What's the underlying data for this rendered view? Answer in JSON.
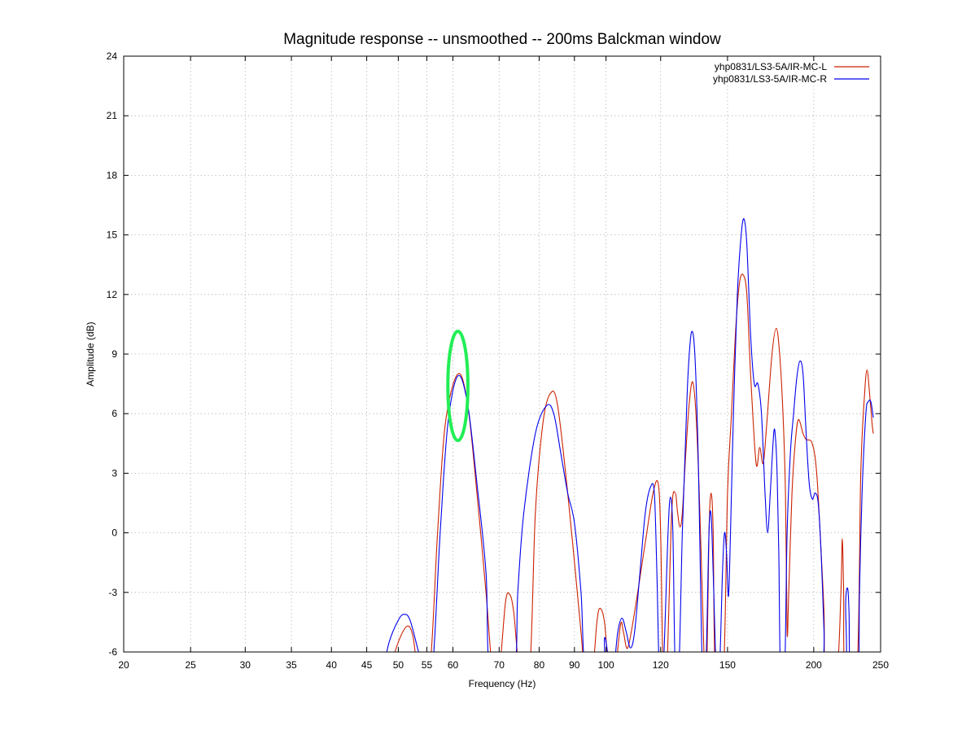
{
  "chart_data": {
    "type": "line",
    "title": "Magnitude response -- unsmoothed -- 200ms Balckman window",
    "xlabel": "Frequency (Hz)",
    "ylabel": "Amplitude (dB)",
    "x_scale": "log",
    "xlim": [
      20,
      250
    ],
    "ylim": [
      -6,
      24
    ],
    "x_ticks": [
      20,
      25,
      30,
      35,
      40,
      45,
      50,
      55,
      60,
      70,
      80,
      90,
      100,
      120,
      150,
      200,
      250
    ],
    "y_ticks": [
      -6,
      -3,
      0,
      3,
      6,
      9,
      12,
      15,
      18,
      21,
      24
    ],
    "grid": true,
    "legend_position": "top-right",
    "series": [
      {
        "name": "yhp0831/LS3-5A/IR-MC-L",
        "color": "#cc2200",
        "points": [
          [
            48.5,
            -7
          ],
          [
            50,
            -5.5
          ],
          [
            51.5,
            -4.7
          ],
          [
            52.5,
            -5.2
          ],
          [
            53.5,
            -7
          ],
          [
            55.5,
            -7
          ],
          [
            57,
            0
          ],
          [
            58.5,
            5.5
          ],
          [
            61,
            8
          ],
          [
            63,
            6.5
          ],
          [
            65,
            2
          ],
          [
            67,
            -3
          ],
          [
            68.5,
            -7
          ],
          [
            70,
            -7
          ],
          [
            71.5,
            -3.5
          ],
          [
            72.5,
            -3.1
          ],
          [
            73.5,
            -4
          ],
          [
            75,
            -7
          ],
          [
            77.5,
            -7
          ],
          [
            79,
            1
          ],
          [
            81,
            5.5
          ],
          [
            83,
            7
          ],
          [
            85,
            6.5
          ],
          [
            88,
            2
          ],
          [
            92,
            -5
          ],
          [
            93,
            -7
          ],
          [
            95.5,
            -7
          ],
          [
            97,
            -4.5
          ],
          [
            98,
            -3.8
          ],
          [
            99.5,
            -4.5
          ],
          [
            101,
            -7
          ],
          [
            103,
            -7
          ],
          [
            105,
            -4.6
          ],
          [
            106,
            -5
          ],
          [
            107.5,
            -5.8
          ],
          [
            110,
            -4
          ],
          [
            114,
            -0.5
          ],
          [
            117,
            2
          ],
          [
            119,
            2.5
          ],
          [
            120,
            0
          ],
          [
            121,
            -7
          ],
          [
            122.5,
            -7
          ],
          [
            124.5,
            1
          ],
          [
            126,
            2
          ],
          [
            127,
            1
          ],
          [
            128,
            0.3
          ],
          [
            129,
            1
          ],
          [
            130.5,
            4
          ],
          [
            132,
            6.5
          ],
          [
            133.5,
            7.6
          ],
          [
            135,
            6
          ],
          [
            136.5,
            2
          ],
          [
            138,
            -3.5
          ],
          [
            139,
            -7
          ],
          [
            140,
            -7
          ],
          [
            141,
            0
          ],
          [
            142,
            2
          ],
          [
            143,
            0
          ],
          [
            144,
            -7
          ],
          [
            148,
            -7
          ],
          [
            150,
            2
          ],
          [
            152,
            6
          ],
          [
            154,
            10
          ],
          [
            156,
            12.5
          ],
          [
            158,
            13
          ],
          [
            160,
            12
          ],
          [
            162,
            8
          ],
          [
            165,
            3.5
          ],
          [
            167,
            4.3
          ],
          [
            169,
            3.5
          ],
          [
            171,
            5.5
          ],
          [
            174,
            9
          ],
          [
            176.5,
            10.3
          ],
          [
            178.5,
            9
          ],
          [
            180.5,
            6
          ],
          [
            182,
            2
          ],
          [
            183,
            -5
          ],
          [
            184,
            -3
          ],
          [
            186,
            2
          ],
          [
            188,
            4.5
          ],
          [
            190,
            5.7
          ],
          [
            193,
            5
          ],
          [
            195,
            4.7
          ],
          [
            199,
            4.5
          ],
          [
            202,
            3
          ],
          [
            205,
            -1
          ],
          [
            207,
            -4
          ],
          [
            208,
            -7
          ],
          [
            216,
            -7
          ],
          [
            219,
            -3
          ],
          [
            220,
            -0.3
          ],
          [
            221,
            -3
          ],
          [
            222,
            -7
          ],
          [
            231,
            -7
          ],
          [
            234,
            3
          ],
          [
            237,
            7
          ],
          [
            239,
            8.2
          ],
          [
            241,
            7
          ],
          [
            243,
            5.5
          ],
          [
            244,
            5
          ]
        ]
      },
      {
        "name": "yhp0831/LS3-5A/IR-MC-R",
        "color": "#0000ee",
        "points": [
          [
            47.5,
            -7
          ],
          [
            48.5,
            -5.5
          ],
          [
            50,
            -4.4
          ],
          [
            51,
            -4.1
          ],
          [
            52,
            -4.4
          ],
          [
            53.5,
            -6
          ],
          [
            54.5,
            -7
          ],
          [
            56,
            -7
          ],
          [
            57.5,
            0
          ],
          [
            59,
            5.5
          ],
          [
            61,
            7.9
          ],
          [
            63,
            6.5
          ],
          [
            65,
            2.5
          ],
          [
            67,
            -2
          ],
          [
            68,
            -7
          ],
          [
            73.5,
            -7
          ],
          [
            74.5,
            -3
          ],
          [
            76,
            1
          ],
          [
            79,
            5
          ],
          [
            82,
            6.4
          ],
          [
            84,
            6
          ],
          [
            86,
            4
          ],
          [
            88,
            2
          ],
          [
            90,
            0.5
          ],
          [
            92,
            -3
          ],
          [
            93.5,
            -7
          ],
          [
            99,
            -7
          ],
          [
            99.5,
            -5.3
          ],
          [
            100.5,
            -6
          ],
          [
            101,
            -7
          ],
          [
            102.5,
            -7
          ],
          [
            104,
            -5
          ],
          [
            105.5,
            -4.3
          ],
          [
            107,
            -5
          ],
          [
            108.5,
            -5.8
          ],
          [
            110,
            -5
          ],
          [
            112,
            -2
          ],
          [
            114,
            1
          ],
          [
            116,
            2.3
          ],
          [
            117.5,
            2
          ],
          [
            118.5,
            -2
          ],
          [
            119.5,
            -7
          ],
          [
            121,
            -7
          ],
          [
            123,
            0
          ],
          [
            124,
            1.8
          ],
          [
            125,
            0
          ],
          [
            126,
            -7
          ],
          [
            127.5,
            -7
          ],
          [
            129,
            0
          ],
          [
            130.5,
            5
          ],
          [
            131.5,
            8
          ],
          [
            133,
            10.1
          ],
          [
            134.5,
            9
          ],
          [
            136,
            4
          ],
          [
            137,
            -2
          ],
          [
            138,
            -7
          ],
          [
            139.5,
            -7
          ],
          [
            141,
            0
          ],
          [
            142,
            0.9
          ],
          [
            143,
            -2
          ],
          [
            144.5,
            -7
          ],
          [
            146,
            -7
          ],
          [
            147.5,
            -2
          ],
          [
            148.5,
            0
          ],
          [
            149.5,
            -1
          ],
          [
            150.5,
            -3.2
          ],
          [
            151.5,
            0
          ],
          [
            153,
            6
          ],
          [
            155,
            12
          ],
          [
            157,
            15
          ],
          [
            158.5,
            15.8
          ],
          [
            160,
            14.5
          ],
          [
            162,
            10
          ],
          [
            164,
            7.5
          ],
          [
            166,
            7.5
          ],
          [
            168,
            6
          ],
          [
            170,
            2
          ],
          [
            171.5,
            0
          ],
          [
            173,
            2
          ],
          [
            175,
            5
          ],
          [
            176,
            4.8
          ],
          [
            177,
            3
          ],
          [
            178,
            -1
          ],
          [
            179,
            -7
          ],
          [
            181.5,
            -7
          ],
          [
            183,
            0
          ],
          [
            185,
            4
          ],
          [
            187,
            6
          ],
          [
            189,
            7.8
          ],
          [
            191,
            8.65
          ],
          [
            193,
            8
          ],
          [
            195,
            5
          ],
          [
            197,
            2.5
          ],
          [
            199,
            1.7
          ],
          [
            201,
            2
          ],
          [
            203,
            1.5
          ],
          [
            205,
            -1
          ],
          [
            207,
            -5
          ],
          [
            208,
            -7
          ],
          [
            222,
            -7
          ],
          [
            222.5,
            -3.5
          ],
          [
            224,
            -2.8
          ],
          [
            225,
            -4
          ],
          [
            226,
            -7
          ],
          [
            232,
            -7
          ],
          [
            233,
            -3
          ],
          [
            235,
            2
          ],
          [
            238,
            6
          ],
          [
            240,
            6.6
          ],
          [
            242,
            6.6
          ],
          [
            244,
            5.8
          ]
        ]
      }
    ],
    "annotations": [
      {
        "type": "ellipse",
        "color": "#22ee55",
        "center": [
          61,
          7.4
        ],
        "x_half_width_ratio": 1.034,
        "y_half_height": 2.75
      }
    ]
  }
}
